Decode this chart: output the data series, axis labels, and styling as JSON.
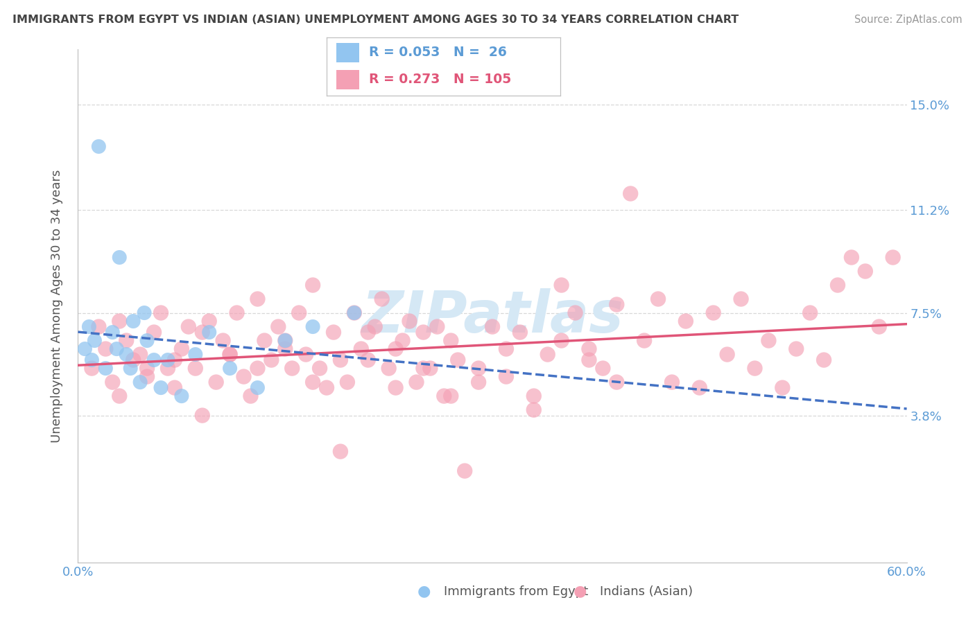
{
  "title": "IMMIGRANTS FROM EGYPT VS INDIAN (ASIAN) UNEMPLOYMENT AMONG AGES 30 TO 34 YEARS CORRELATION CHART",
  "source": "Source: ZipAtlas.com",
  "ylabel": "Unemployment Among Ages 30 to 34 years",
  "ytick_values": [
    3.8,
    7.5,
    11.2,
    15.0
  ],
  "xlim": [
    0.0,
    60.0
  ],
  "ylim": [
    -1.5,
    17.0
  ],
  "legend_blue_R": "0.053",
  "legend_blue_N": "26",
  "legend_pink_R": "0.273",
  "legend_pink_N": "105",
  "blue_dot_color": "#92C5F0",
  "pink_dot_color": "#F4A0B4",
  "blue_line_color": "#4472C4",
  "pink_line_color": "#E05578",
  "grid_color": "#D8D8D8",
  "title_color": "#444444",
  "axis_label_color": "#5B9BD5",
  "watermark_color": "#D5E8F5",
  "bg_color": "#FFFFFF",
  "egypt_x": [
    1.5,
    3.0,
    0.5,
    1.0,
    2.0,
    2.5,
    3.5,
    4.0,
    4.5,
    5.0,
    5.5,
    6.0,
    0.8,
    1.2,
    2.8,
    3.8,
    4.8,
    6.5,
    7.5,
    8.5,
    9.5,
    11.0,
    13.0,
    15.0,
    17.0,
    20.0
  ],
  "egypt_y": [
    13.5,
    9.5,
    6.2,
    5.8,
    5.5,
    6.8,
    6.0,
    7.2,
    5.0,
    6.5,
    5.8,
    4.8,
    7.0,
    6.5,
    6.2,
    5.5,
    7.5,
    5.8,
    4.5,
    6.0,
    6.8,
    5.5,
    4.8,
    6.5,
    7.0,
    7.5
  ],
  "indian_x": [
    1.0,
    1.5,
    2.0,
    2.5,
    3.0,
    3.5,
    4.0,
    4.5,
    5.0,
    5.5,
    6.0,
    6.5,
    7.0,
    7.5,
    8.0,
    8.5,
    9.0,
    9.5,
    10.0,
    10.5,
    11.0,
    11.5,
    12.0,
    12.5,
    13.0,
    13.5,
    14.0,
    14.5,
    15.0,
    15.5,
    16.0,
    16.5,
    17.0,
    17.5,
    18.0,
    18.5,
    19.0,
    19.5,
    20.0,
    20.5,
    21.0,
    21.5,
    22.0,
    22.5,
    23.0,
    23.5,
    24.0,
    24.5,
    25.0,
    25.5,
    26.0,
    26.5,
    27.0,
    27.5,
    28.0,
    29.0,
    30.0,
    31.0,
    32.0,
    33.0,
    34.0,
    35.0,
    36.0,
    37.0,
    38.0,
    39.0,
    40.0,
    41.0,
    42.0,
    43.0,
    44.0,
    45.0,
    46.0,
    47.0,
    48.0,
    49.0,
    50.0,
    51.0,
    52.0,
    53.0,
    54.0,
    55.0,
    56.0,
    57.0,
    58.0,
    59.0,
    3.0,
    5.0,
    7.0,
    9.0,
    11.0,
    13.0,
    15.0,
    17.0,
    19.0,
    21.0,
    23.0,
    25.0,
    27.0,
    29.0,
    31.0,
    33.0,
    35.0,
    37.0,
    39.0
  ],
  "indian_y": [
    5.5,
    7.0,
    6.2,
    5.0,
    7.2,
    6.5,
    5.8,
    6.0,
    5.2,
    6.8,
    7.5,
    5.5,
    4.8,
    6.2,
    7.0,
    5.5,
    6.8,
    7.2,
    5.0,
    6.5,
    6.0,
    7.5,
    5.2,
    4.5,
    8.0,
    6.5,
    5.8,
    7.0,
    6.2,
    5.5,
    7.5,
    6.0,
    8.5,
    5.5,
    4.8,
    6.8,
    2.5,
    5.0,
    7.5,
    6.2,
    5.8,
    7.0,
    8.0,
    5.5,
    4.8,
    6.5,
    7.2,
    5.0,
    6.8,
    5.5,
    7.0,
    4.5,
    6.5,
    5.8,
    1.8,
    5.5,
    7.0,
    5.2,
    6.8,
    4.5,
    6.0,
    8.5,
    7.5,
    6.2,
    5.5,
    7.8,
    11.8,
    6.5,
    8.0,
    5.0,
    7.2,
    4.8,
    7.5,
    6.0,
    8.0,
    5.5,
    6.5,
    4.8,
    6.2,
    7.5,
    5.8,
    8.5,
    9.5,
    9.0,
    7.0,
    9.5,
    4.5,
    5.5,
    5.8,
    3.8,
    6.0,
    5.5,
    6.5,
    5.0,
    5.8,
    6.8,
    6.2,
    5.5,
    4.5,
    5.0,
    6.2,
    4.0,
    6.5,
    5.8,
    5.0
  ]
}
